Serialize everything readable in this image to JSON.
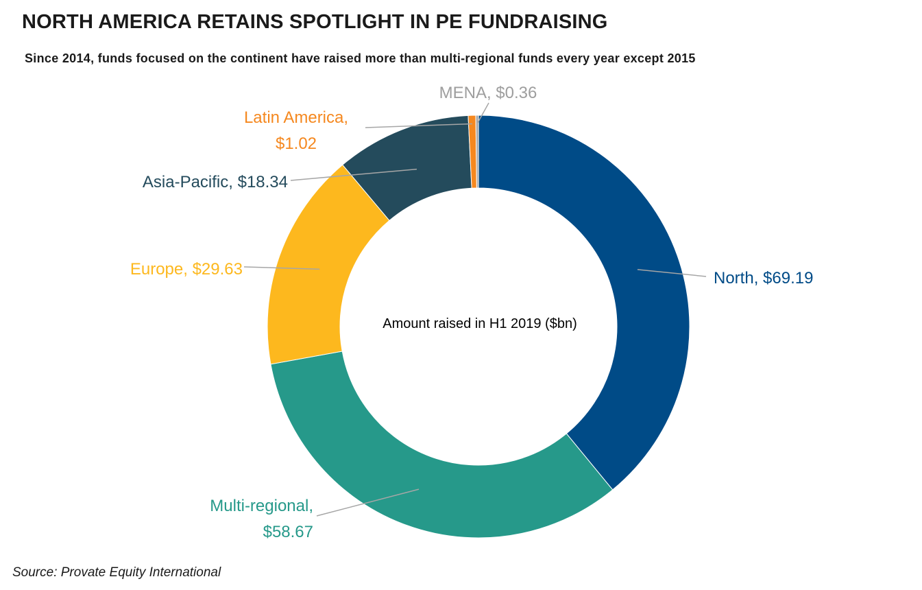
{
  "title": "NORTH AMERICA RETAINS SPOTLIGHT IN PE FUNDRAISING",
  "subtitle": "Since 2014, funds focused on the continent have raised more than multi-regional funds every year except 2015",
  "source": "Source: Provate Equity International",
  "chart_data": {
    "type": "pie",
    "donut": true,
    "center_label": "Amount raised in H1 2019 ($bn)",
    "slices": [
      {
        "name": "North",
        "value": 69.19,
        "color": "#004B87",
        "label_lines": [
          "North, $69.19"
        ]
      },
      {
        "name": "Multi-regional",
        "value": 58.67,
        "color": "#26998A",
        "label_lines": [
          "Multi-regional,",
          "$58.67"
        ]
      },
      {
        "name": "Europe",
        "value": 29.63,
        "color": "#FDB81E",
        "label_lines": [
          "Europe, $29.63"
        ]
      },
      {
        "name": "Asia-Pacific",
        "value": 18.34,
        "color": "#244B5C",
        "label_lines": [
          "Asia-Pacific, $18.34"
        ]
      },
      {
        "name": "Latin America",
        "value": 1.02,
        "color": "#F5881F",
        "label_lines": [
          "Latin America,",
          "$1.02"
        ]
      },
      {
        "name": "MENA",
        "value": 0.36,
        "color": "#A6A6A6",
        "label_lines": [
          "MENA, $0.36"
        ]
      }
    ]
  }
}
